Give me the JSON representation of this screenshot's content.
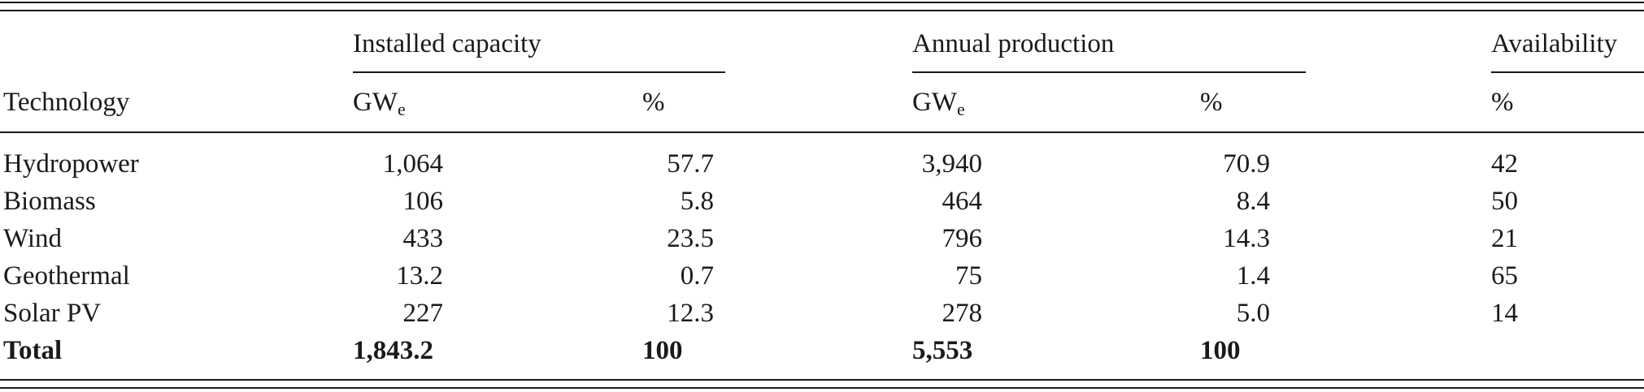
{
  "header": {
    "group_installed": "Installed capacity",
    "group_annual": "Annual production",
    "group_availability": "Availability",
    "technology": "Technology",
    "gw_base": "GW",
    "gw_sub": "e",
    "percent": "%"
  },
  "rows": [
    {
      "tech": "Hydropower",
      "cap_gw": "1,064",
      "cap_pct": "57.7",
      "prod_gw": "3,940",
      "prod_pct": "70.9",
      "avail": "42"
    },
    {
      "tech": "Biomass",
      "cap_gw": "106",
      "cap_pct": "5.8",
      "prod_gw": "464",
      "prod_pct": "8.4",
      "avail": "50"
    },
    {
      "tech": "Wind",
      "cap_gw": "433",
      "cap_pct": "23.5",
      "prod_gw": "796",
      "prod_pct": "14.3",
      "avail": "21"
    },
    {
      "tech": "Geothermal",
      "cap_gw": "13.2",
      "cap_pct": "0.7",
      "prod_gw": "75",
      "prod_pct": "1.4",
      "avail": "65"
    },
    {
      "tech": "Solar PV",
      "cap_gw": "227",
      "cap_pct": "12.3",
      "prod_gw": "278",
      "prod_pct": "5.0",
      "avail": "14"
    }
  ],
  "total": {
    "tech": "Total",
    "cap_gw": "1,843.2",
    "cap_pct": "100",
    "prod_gw": "5,553",
    "prod_pct": "100"
  }
}
